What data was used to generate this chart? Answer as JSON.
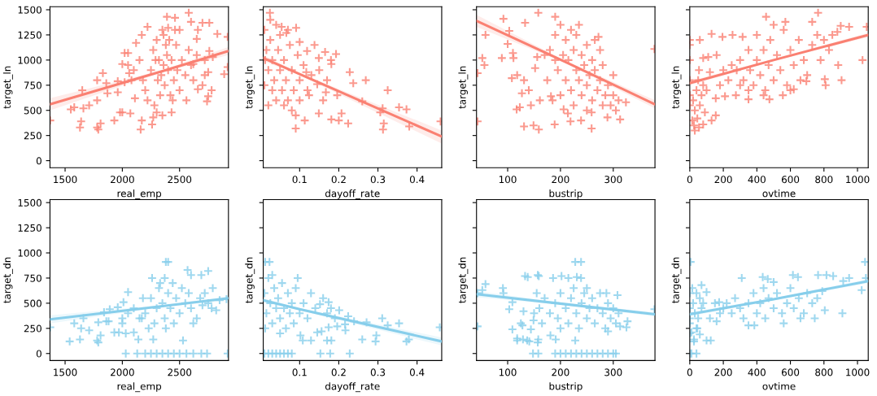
{
  "chart_data": [
    {
      "type": "scatter",
      "xlabel": "real_emp",
      "ylabel": "target_ln",
      "xlim": [
        1368,
        2927
      ],
      "xticks": [
        1500,
        2000,
        2500
      ],
      "ylim": [
        -70,
        1530
      ],
      "yticks": [
        0,
        250,
        500,
        750,
        1000,
        1250,
        1500
      ],
      "series": [
        {
          "marker": "cross",
          "color": "#fa8072",
          "x": [
            1370,
            1550,
            1580,
            1630,
            1640,
            1650,
            1660,
            1710,
            1780,
            1790,
            1780,
            1780,
            1810,
            1830,
            1860,
            1870,
            1930,
            1960,
            1960,
            1980,
            2000,
            2000,
            2020,
            2050,
            2060,
            2070,
            2120,
            2110,
            2160,
            2170,
            2170,
            2220,
            2260,
            2270,
            2300,
            2350,
            2390,
            2400,
            2430,
            2460,
            2500,
            2580,
            2600,
            2700,
            2760,
            2830,
            2920,
            2920,
            2890,
            2740,
            2750,
            2660,
            2720,
            2660,
            2620,
            2790,
            2760,
            2650,
            2200,
            2220,
            2250,
            2270,
            2300,
            2320,
            2340,
            2350,
            2360,
            2370,
            2380,
            2390,
            2400,
            2420,
            2430,
            2450,
            2470,
            2480,
            2500,
            2520,
            2550,
            2560,
            2580,
            2600,
            2620,
            2650,
            2700,
            2720,
            2750,
            2780,
            2180,
            2150,
            2100,
            2080,
            2050,
            2020,
            2280,
            2330,
            2360,
            2310,
            2290,
            2410,
            2440,
            2460
          ],
          "values": [
            400,
            510,
            530,
            330,
            390,
            700,
            520,
            550,
            330,
            310,
            800,
            600,
            370,
            870,
            770,
            670,
            400,
            680,
            790,
            480,
            480,
            960,
            1070,
            1070,
            870,
            470,
            1170,
            620,
            310,
            400,
            1250,
            1330,
            360,
            430,
            480,
            450,
            1430,
            1320,
            480,
            1420,
            1300,
            1470,
            1380,
            1370,
            1370,
            1260,
            1230,
            930,
            860,
            590,
            640,
            1300,
            850,
            710,
            960,
            1030,
            1090,
            1210,
            700,
            600,
            900,
            1100,
            1200,
            1000,
            850,
            1300,
            950,
            750,
            1150,
            1050,
            900,
            650,
            1000,
            800,
            1150,
            900,
            700,
            1000,
            850,
            600,
            1100,
            950,
            800,
            1050,
            750,
            1000,
            880,
            700,
            800,
            1000,
            900,
            800,
            950,
            780,
            550,
            650,
            1250,
            800,
            1000,
            1200,
            600,
            1300
          ]
        },
        {
          "type": "line",
          "color": "#fa8072",
          "x": [
            1368,
            2350,
            2927
          ],
          "values": [
            560,
            890,
            1090
          ],
          "lower": [
            500,
            880,
            1050
          ],
          "upper": [
            620,
            900,
            1130
          ]
        }
      ]
    },
    {
      "type": "scatter",
      "xlabel": "dayoff_rate",
      "ylabel": "target_ln",
      "xlim": [
        0.007,
        0.463
      ],
      "xticks": [
        0.1,
        0.2,
        0.3,
        0.4
      ],
      "ylim": [
        -70,
        1530
      ],
      "yticks": [
        0,
        250,
        500,
        750,
        1000,
        1250,
        1500
      ],
      "tick_labels": "x",
      "series": [
        {
          "marker": "cross",
          "color": "#fa8072",
          "x": [
            0.024,
            0.054,
            0.091,
            0.066,
            0.1,
            0.119,
            0.138,
            0.165,
            0.193,
            0.149,
            0.181,
            0.228,
            0.237,
            0.269,
            0.325,
            0.354,
            0.373,
            0.38,
            0.312,
            0.306,
            0.313,
            0.315,
            0.26,
            0.224,
            0.207,
            0.2,
            0.181,
            0.149,
            0.113,
            0.09,
            0.167,
            0.196,
            0.145,
            0.124,
            0.117,
            0.46,
            0.01,
            0.015,
            0.02,
            0.025,
            0.03,
            0.03,
            0.035,
            0.04,
            0.04,
            0.045,
            0.05,
            0.055,
            0.06,
            0.06,
            0.065,
            0.07,
            0.075,
            0.08,
            0.08,
            0.085,
            0.09,
            0.01,
            0.02,
            0.012,
            0.05,
            0.07,
            0.1,
            0.1,
            0.11,
            0.13,
            0.15,
            0.17,
            0.18,
            0.16,
            0.12,
            0.025,
            0.095
          ],
          "values": [
            1470,
            1330,
            1320,
            1270,
            1180,
            1090,
            1150,
            1080,
            1060,
            1020,
            960,
            880,
            770,
            800,
            700,
            530,
            510,
            340,
            520,
            480,
            310,
            370,
            590,
            370,
            470,
            400,
            410,
            470,
            400,
            320,
            680,
            650,
            760,
            650,
            880,
            390,
            1300,
            1100,
            900,
            1200,
            700,
            1000,
            800,
            1350,
            600,
            1100,
            900,
            700,
            550,
            1000,
            800,
            600,
            1150,
            500,
            900,
            700,
            450,
            750,
            550,
            1000,
            1250,
            1300,
            800,
            600,
            950,
            850,
            900,
            800,
            1000,
            600,
            700,
            1400,
            1050
          ]
        },
        {
          "type": "line",
          "color": "#fa8072",
          "x": [
            0.007,
            0.1,
            0.463
          ],
          "values": [
            1020,
            860,
            240
          ],
          "lower": [
            990,
            850,
            170
          ],
          "upper": [
            1050,
            870,
            300
          ]
        }
      ]
    },
    {
      "type": "scatter",
      "xlabel": "bustrip",
      "ylabel": "target_ln",
      "xlim": [
        41,
        379
      ],
      "xticks": [
        100,
        200,
        300
      ],
      "ylim": [
        -70,
        1530
      ],
      "yticks": [
        0,
        250,
        500,
        750,
        1000,
        1250,
        1500
      ],
      "tick_labels": "x",
      "series": [
        {
          "marker": "cross",
          "color": "#fa8072",
          "x": [
            43,
            43,
            52,
            56,
            58,
            92,
            89,
            100,
            103,
            110,
            111,
            108,
            118,
            117,
            123,
            127,
            131,
            131,
            133,
            140,
            144,
            149,
            159,
            158,
            161,
            152,
            156,
            182,
            189,
            190,
            206,
            214,
            219,
            239,
            259,
            259,
            272,
            289,
            313,
            324,
            378,
            180,
            190,
            195,
            200,
            205,
            210,
            210,
            215,
            220,
            220,
            225,
            230,
            230,
            235,
            240,
            240,
            245,
            250,
            250,
            255,
            260,
            260,
            265,
            270,
            275,
            280,
            280,
            285,
            290,
            295,
            300,
            305,
            300,
            175,
            185,
            170,
            200,
            265,
            310,
            250,
            225,
            190,
            235,
            275
          ],
          "values": [
            870,
            390,
            1020,
            950,
            1250,
            1410,
            1020,
            1160,
            1290,
            1070,
            1020,
            820,
            850,
            510,
            530,
            670,
            800,
            340,
            1370,
            700,
            550,
            350,
            310,
            1470,
            600,
            920,
            1030,
            640,
            360,
            1430,
            510,
            470,
            390,
            400,
            320,
            480,
            1230,
            430,
            410,
            580,
            1110,
            1100,
            1250,
            900,
            1350,
            1050,
            800,
            1200,
            1000,
            1300,
            700,
            1100,
            900,
            1250,
            800,
            1050,
            650,
            950,
            1150,
            750,
            850,
            1000,
            600,
            900,
            700,
            800,
            550,
            950,
            650,
            750,
            550,
            650,
            500,
            850,
            800,
            600,
            1050,
            650,
            1200,
            600,
            500,
            550,
            1000,
            1350,
            1100
          ]
        },
        {
          "type": "line",
          "color": "#fa8072",
          "x": [
            41,
            210,
            379
          ],
          "values": [
            1390,
            980,
            560
          ],
          "lower": [
            1330,
            970,
            520
          ],
          "upper": [
            1450,
            990,
            600
          ]
        }
      ]
    },
    {
      "type": "scatter",
      "xlabel": "ovtime",
      "ylabel": "target_ln",
      "xlim": [
        0,
        1064
      ],
      "xticks": [
        0,
        200,
        400,
        600,
        800,
        1000
      ],
      "ylim": [
        -70,
        1530
      ],
      "yticks": [
        0,
        250,
        500,
        750,
        1000,
        1250,
        1500
      ],
      "tick_labels": "x",
      "series": [
        {
          "marker": "cross",
          "color": "#fa8072",
          "x": [
            0,
            0,
            0,
            0,
            0,
            0,
            20,
            30,
            40,
            50,
            60,
            70,
            80,
            15,
            25,
            45,
            90,
            100,
            55,
            120,
            160,
            30,
            55,
            80,
            130,
            155,
            155,
            130,
            195,
            60,
            80,
            110,
            210,
            275,
            350,
            475,
            555,
            620,
            695,
            805,
            810,
            905,
            885,
            950,
            900,
            765,
            455,
            570,
            730,
            1030,
            1055,
            255,
            315,
            280,
            300,
            320,
            350,
            360,
            380,
            400,
            400,
            420,
            440,
            450,
            470,
            480,
            500,
            520,
            540,
            560,
            580,
            600,
            620,
            650,
            680,
            700,
            730,
            760,
            800,
            850,
            500,
            350,
            300,
            600,
            250,
            200,
            230,
            180,
            440,
            660,
            780,
            830,
            880
          ],
          "values": [
            1200,
            1000,
            800,
            650,
            1150,
            550,
            600,
            500,
            700,
            800,
            550,
            650,
            750,
            400,
            350,
            420,
            480,
            700,
            900,
            880,
            1050,
            300,
            330,
            360,
            400,
            450,
            620,
            1260,
            1230,
            1200,
            1020,
            1030,
            640,
            650,
            610,
            610,
            650,
            710,
            790,
            810,
            750,
            800,
            950,
            1330,
            1340,
            1470,
            1430,
            1380,
            1380,
            1000,
            1330,
            1250,
            1230,
            900,
            1000,
            800,
            1100,
            900,
            750,
            1000,
            1250,
            850,
            1100,
            700,
            950,
            1200,
            800,
            1050,
            900,
            1300,
            750,
            1100,
            950,
            1200,
            1000,
            850,
            1150,
            1250,
            1200,
            1250,
            1350,
            700,
            750,
            700,
            950,
            900,
            800,
            750,
            650,
            800,
            1000,
            1100,
            1280
          ]
        },
        {
          "type": "line",
          "color": "#fa8072",
          "x": [
            0,
            500,
            1064
          ],
          "values": [
            770,
            1000,
            1250
          ],
          "lower": [
            750,
            990,
            1230
          ],
          "upper": [
            790,
            1010,
            1270
          ]
        }
      ]
    },
    {
      "type": "scatter",
      "xlabel": "real_emp",
      "ylabel": "target_dn",
      "xlim": [
        1368,
        2927
      ],
      "xticks": [
        1500,
        2000,
        2500
      ],
      "ylim": [
        -70,
        1530
      ],
      "yticks": [
        0,
        250,
        500,
        750,
        1000,
        1250,
        1500
      ],
      "series": [
        {
          "marker": "cross",
          "color": "#87ceeb",
          "x": [
            1370,
            1540,
            1630,
            1640,
            1660,
            1580,
            1710,
            1780,
            1790,
            1810,
            1790,
            1840,
            1860,
            1880,
            1890,
            1930,
            1970,
            1960,
            2000,
            2010,
            2030,
            2050,
            2100,
            2140,
            2170,
            2260,
            2380,
            2400,
            2370,
            2270,
            2530,
            2570,
            2600,
            2690,
            2750,
            2790,
            2820,
            2910,
            2030,
            2130,
            2200,
            2250,
            2300,
            2350,
            2400,
            2450,
            2500,
            2560,
            2620,
            2690,
            2740,
            2920,
            2200,
            2250,
            2280,
            2300,
            2320,
            2350,
            2370,
            2400,
            2420,
            2450,
            2470,
            2500,
            2520,
            2550,
            2600,
            2650,
            2680,
            2700,
            2720,
            2750,
            2180,
            2150,
            2100,
            2050,
            2000,
            2230,
            2330,
            2380,
            2440,
            2580,
            2620,
            2780,
            2850
          ],
          "values": [
            260,
            120,
            140,
            250,
            350,
            300,
            230,
            130,
            110,
            180,
            310,
            410,
            320,
            320,
            440,
            210,
            210,
            460,
            350,
            510,
            200,
            610,
            210,
            140,
            350,
            750,
            910,
            910,
            750,
            140,
            130,
            830,
            780,
            780,
            820,
            650,
            430,
            540,
            0,
            0,
            0,
            0,
            0,
            0,
            0,
            0,
            0,
            0,
            0,
            0,
            0,
            0,
            400,
            550,
            300,
            450,
            650,
            500,
            350,
            600,
            450,
            300,
            550,
            400,
            650,
            500,
            450,
            350,
            550,
            480,
            600,
            500,
            550,
            350,
            450,
            400,
            300,
            250,
            700,
            250,
            700,
            600,
            300,
            450,
            530
          ]
        },
        {
          "type": "line",
          "color": "#87ceeb",
          "x": [
            1368,
            2350,
            2927
          ],
          "values": [
            340,
            470,
            550
          ],
          "lower": [
            300,
            460,
            530
          ],
          "upper": [
            380,
            480,
            570
          ]
        }
      ]
    },
    {
      "type": "scatter",
      "xlabel": "dayoff_rate",
      "ylabel": "target_dn",
      "xlim": [
        0.007,
        0.463
      ],
      "xticks": [
        0.1,
        0.2,
        0.3,
        0.4
      ],
      "ylim": [
        -70,
        1530
      ],
      "yticks": [
        0,
        250,
        500,
        750,
        1000,
        1250,
        1500
      ],
      "tick_labels": "x",
      "series": [
        {
          "marker": "cross",
          "color": "#87ceeb",
          "x": [
            0.012,
            0.023,
            0.01,
            0.02,
            0.03,
            0.04,
            0.05,
            0.06,
            0.07,
            0.08,
            0.153,
            0.178,
            0.228,
            0.17,
            0.181,
            0.129,
            0.108,
            0.102,
            0.145,
            0.156,
            0.174,
            0.196,
            0.217,
            0.216,
            0.26,
            0.271,
            0.296,
            0.294,
            0.311,
            0.325,
            0.354,
            0.379,
            0.373,
            0.458,
            0.129,
            0.152,
            0.174,
            0.201,
            0.224,
            0.239,
            0.095,
            0.01,
            0.015,
            0.02,
            0.025,
            0.03,
            0.035,
            0.04,
            0.045,
            0.05,
            0.055,
            0.06,
            0.065,
            0.07,
            0.075,
            0.08,
            0.085,
            0.09,
            0.012,
            0.03,
            0.05,
            0.1,
            0.11,
            0.12,
            0.14,
            0.16,
            0.18,
            0.19,
            0.17
          ],
          "values": [
            910,
            910,
            0,
            0,
            0,
            0,
            0,
            0,
            0,
            0,
            0,
            0,
            0,
            130,
            130,
            130,
            130,
            180,
            210,
            220,
            260,
            270,
            230,
            290,
            140,
            310,
            180,
            120,
            350,
            280,
            300,
            140,
            120,
            260,
            600,
            490,
            510,
            430,
            370,
            320,
            750,
            600,
            400,
            750,
            500,
            300,
            650,
            450,
            550,
            350,
            700,
            450,
            250,
            600,
            400,
            500,
            300,
            650,
            250,
            780,
            200,
            400,
            500,
            350,
            450,
            550,
            450,
            350,
            400
          ]
        },
        {
          "type": "line",
          "color": "#87ceeb",
          "x": [
            0.007,
            0.1,
            0.463
          ],
          "values": [
            530,
            440,
            120
          ],
          "lower": [
            510,
            430,
            80
          ],
          "upper": [
            550,
            450,
            160
          ]
        }
      ]
    },
    {
      "type": "scatter",
      "xlabel": "bustrip",
      "ylabel": "target_dn",
      "xlim": [
        41,
        379
      ],
      "xticks": [
        100,
        200,
        300
      ],
      "ylim": [
        -70,
        1530
      ],
      "yticks": [
        0,
        250,
        500,
        750,
        1000,
        1250,
        1500
      ],
      "tick_labels": "x",
      "series": [
        {
          "marker": "cross",
          "color": "#87ceeb",
          "x": [
            43,
            43,
            58,
            52,
            91,
            92,
            109,
            103,
            109,
            118,
            118,
            129,
            137,
            141,
            158,
            157,
            144,
            130,
            125,
            128,
            133,
            138,
            157,
            159,
            149,
            181,
            191,
            228,
            228,
            239,
            231,
            239,
            186,
            202,
            215,
            287,
            308,
            327,
            325,
            313,
            290,
            378,
            148,
            158,
            190,
            200,
            210,
            220,
            230,
            240,
            250,
            260,
            270,
            280,
            290,
            300,
            305,
            190,
            195,
            200,
            210,
            215,
            220,
            225,
            230,
            235,
            240,
            245,
            250,
            255,
            260,
            265,
            270,
            275,
            280,
            285,
            290,
            295,
            300,
            305,
            180,
            170,
            165,
            160,
            200,
            250,
            310,
            155,
            150
          ],
          "values": [
            270,
            600,
            690,
            630,
            650,
            600,
            510,
            440,
            240,
            150,
            130,
            140,
            130,
            120,
            140,
            110,
            240,
            420,
            300,
            280,
            770,
            760,
            780,
            770,
            330,
            180,
            140,
            130,
            910,
            910,
            760,
            750,
            750,
            770,
            750,
            600,
            580,
            320,
            260,
            270,
            220,
            440,
            0,
            0,
            0,
            0,
            0,
            0,
            0,
            0,
            0,
            0,
            0,
            0,
            0,
            0,
            0,
            500,
            350,
            600,
            450,
            300,
            550,
            650,
            400,
            250,
            500,
            600,
            350,
            450,
            550,
            300,
            450,
            600,
            400,
            250,
            500,
            350,
            450,
            300,
            400,
            550,
            300,
            450,
            250,
            650,
            400,
            600,
            400
          ]
        },
        {
          "type": "line",
          "color": "#87ceeb",
          "x": [
            41,
            210,
            379
          ],
          "values": [
            590,
            490,
            390
          ],
          "lower": [
            560,
            480,
            370
          ],
          "upper": [
            620,
            500,
            410
          ]
        }
      ]
    },
    {
      "type": "scatter",
      "xlabel": "ovtime",
      "ylabel": "target_dn",
      "xlim": [
        0,
        1064
      ],
      "xticks": [
        0,
        200,
        400,
        600,
        800,
        1000
      ],
      "ylim": [
        -70,
        1530
      ],
      "yticks": [
        0,
        250,
        500,
        750,
        1000,
        1250,
        1500
      ],
      "tick_labels": "x",
      "series": [
        {
          "marker": "cross",
          "color": "#87ceeb",
          "x": [
            5,
            0,
            10,
            40,
            0,
            0,
            0,
            0,
            0,
            10,
            25,
            25,
            40,
            60,
            100,
            125,
            70,
            100,
            160,
            175,
            310,
            350,
            385,
            435,
            465,
            500,
            615,
            645,
            745,
            805,
            910,
            765,
            815,
            855,
            950,
            915,
            1045,
            1025,
            1050,
            20,
            30,
            40,
            50,
            60,
            70,
            15,
            45,
            80,
            200,
            220,
            250,
            270,
            300,
            320,
            350,
            380,
            400,
            420,
            450,
            470,
            500,
            520,
            550,
            580,
            600,
            620,
            650,
            680,
            700,
            730,
            760,
            790,
            150,
            120,
            180,
            440,
            560,
            660
          ],
          "values": [
            910,
            0,
            0,
            0,
            600,
            450,
            300,
            200,
            350,
            210,
            140,
            120,
            250,
            190,
            130,
            130,
            680,
            610,
            320,
            510,
            750,
            280,
            280,
            760,
            740,
            710,
            780,
            760,
            350,
            430,
            400,
            780,
            780,
            770,
            750,
            720,
            910,
            630,
            750,
            500,
            400,
            600,
            350,
            550,
            450,
            650,
            250,
            500,
            450,
            500,
            400,
            550,
            450,
            350,
            500,
            600,
            400,
            500,
            350,
            550,
            450,
            600,
            400,
            500,
            650,
            450,
            550,
            400,
            600,
            500,
            550,
            620,
            500,
            350,
            400,
            650,
            300,
            350
          ]
        },
        {
          "type": "line",
          "color": "#87ceeb",
          "x": [
            0,
            500,
            1064
          ],
          "values": [
            390,
            540,
            720
          ],
          "lower": [
            370,
            530,
            700
          ],
          "upper": [
            410,
            550,
            740
          ]
        }
      ]
    }
  ]
}
